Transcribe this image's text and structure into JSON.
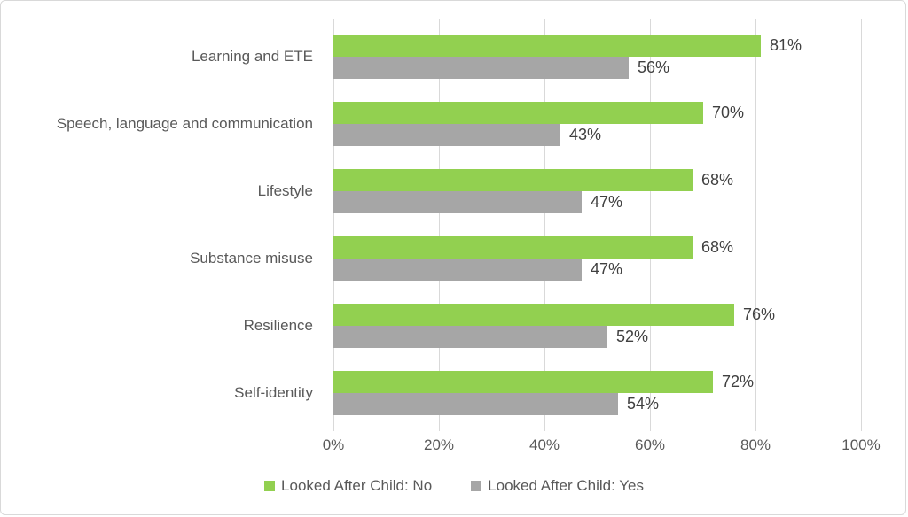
{
  "chart_data": {
    "type": "bar",
    "orientation": "horizontal",
    "categories": [
      "Learning and ETE",
      "Speech, language and communication",
      "Lifestyle",
      "Substance misuse",
      "Resilience",
      "Self-identity"
    ],
    "series": [
      {
        "name": "Looked After Child: No",
        "color": "#92d050",
        "values": [
          81,
          70,
          68,
          68,
          76,
          72
        ],
        "labels": [
          "81%",
          "70%",
          "68%",
          "68%",
          "76%",
          "72%"
        ]
      },
      {
        "name": "Looked After Child: Yes",
        "color": "#a6a6a6",
        "values": [
          56,
          43,
          47,
          47,
          52,
          54
        ],
        "labels": [
          "56%",
          "43%",
          "47%",
          "47%",
          "52%",
          "54%"
        ]
      }
    ],
    "title": "",
    "xlabel": "",
    "ylabel": "",
    "xlim": [
      0,
      100
    ],
    "x_ticks": [
      "0%",
      "20%",
      "40%",
      "60%",
      "80%",
      "100%"
    ],
    "grid": "vertical",
    "gridline_color": "#d9d9d9",
    "legend_position": "bottom",
    "label_color": "#595959",
    "value_label_color": "#404040"
  }
}
